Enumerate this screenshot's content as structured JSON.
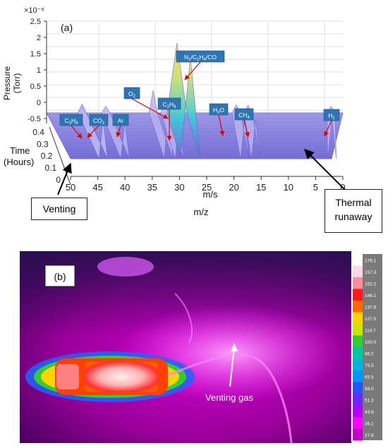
{
  "panel_a": {
    "label": "(a)",
    "exponent_label": "×10⁻⁶",
    "ylabel_line1": "Pressure",
    "ylabel_line2": "(Torr)",
    "time_label_line1": "Time",
    "time_label_line2": "(Hours)",
    "mz_axis_label": "m/s",
    "mz_title": "m/z",
    "callout_left": "Venting",
    "callout_right_line1": "Thermal",
    "callout_right_line2": "runaway"
  },
  "chart_data": [
    {
      "type": "line",
      "subtype": "3d-waterfall",
      "title": "",
      "xlabel": "m/s",
      "ylabel": "Pressure (Torr)",
      "zlabel": "Time (Hours)",
      "x_ticks": [
        50,
        45,
        40,
        35,
        30,
        25,
        20,
        15,
        10,
        5,
        0
      ],
      "x_reversed": true,
      "y_ticks": [
        "2.5",
        "2",
        "1.5",
        "1",
        "0.5",
        "0",
        "-0.5"
      ],
      "y_scale_exponent": -6,
      "ylim": [
        -0.5,
        2.5
      ],
      "z_ticks": [
        "0",
        "0.1",
        "0.2",
        "0.3",
        "0.4"
      ],
      "zlim": [
        0,
        0.45
      ],
      "grid": true,
      "series_peaks": [
        {
          "mz": 44,
          "label": "C3H8",
          "label_sub": [
            "C",
            "3",
            "H",
            "8"
          ],
          "height": 0.08
        },
        {
          "mz": 44,
          "label": "CO2",
          "label_sub": [
            "CO",
            "2"
          ],
          "height": 0.12
        },
        {
          "mz": 40,
          "label": "Ar",
          "label_sub": [
            "Ar"
          ],
          "height": 0.05
        },
        {
          "mz": 32,
          "label": "O2",
          "label_sub": [
            "O",
            "2"
          ],
          "height": 0.55
        },
        {
          "mz": 30,
          "label": "C2H6",
          "label_sub": [
            "C",
            "2",
            "H",
            "6"
          ],
          "height": 0.2
        },
        {
          "mz": 28,
          "label": "N2/C2H4/CO",
          "label_sub": [
            "N",
            "2",
            "/C",
            "2",
            "H",
            "4",
            "/CO"
          ],
          "height": 2.0
        },
        {
          "mz": 18,
          "label": "H2O",
          "label_sub": [
            "H",
            "2",
            "O"
          ],
          "height": 0.1
        },
        {
          "mz": 16,
          "label": "CH4",
          "label_sub": [
            "CH",
            "4"
          ],
          "height": 0.08
        },
        {
          "mz": 2,
          "label": "H2",
          "label_sub": [
            "H",
            "2"
          ],
          "height": 0.05
        }
      ]
    },
    {
      "type": "heatmap",
      "subtype": "thermal-image",
      "title": "",
      "colorbar_ticks": [
        "179.1",
        "157.3",
        "152.2",
        "146.1",
        "137.8",
        "127.5",
        "114.7",
        "100.0",
        "86.2",
        "75.5",
        "65.5",
        "58.0",
        "51.3",
        "43.9",
        "36.1",
        "27.8"
      ],
      "colorbar_colors": [
        "#ffffff",
        "#ffd7e6",
        "#ff8c9a",
        "#ff1a1a",
        "#ff6a00",
        "#ffd400",
        "#c8e600",
        "#33cc33",
        "#00c8a0",
        "#00b4dc",
        "#0096ff",
        "#2850ff",
        "#6a28ff",
        "#b400ff",
        "#ff00ff",
        "#c800c8"
      ]
    }
  ],
  "panel_b": {
    "label": "(b)",
    "annotation": "Venting gas"
  },
  "colors": {
    "surface_base": "#8c86e0",
    "surface_line": "#5b52c8",
    "callout_fill": "#2e75b6",
    "thermal_bg": "#a000a0"
  }
}
